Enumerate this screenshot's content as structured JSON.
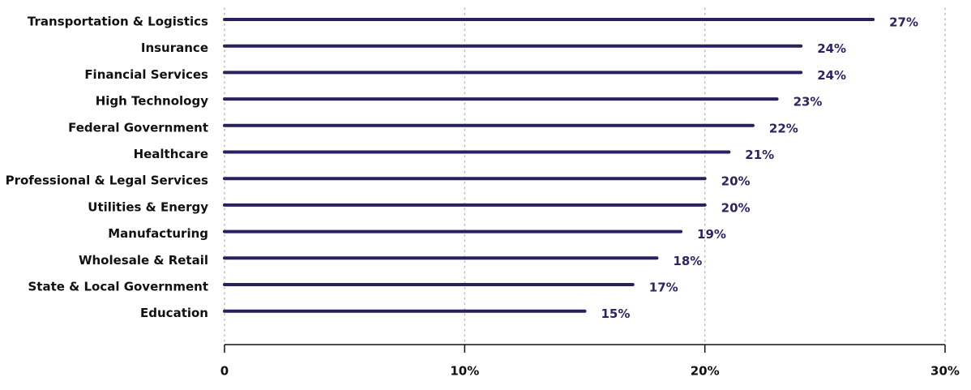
{
  "chart_data": {
    "type": "bar",
    "orientation": "horizontal",
    "categories": [
      "Transportation & Logistics",
      "Insurance",
      "Financial Services",
      "High Technology",
      "Federal Government",
      "Healthcare",
      "Professional & Legal Services",
      "Utilities & Energy",
      "Manufacturing",
      "Wholesale & Retail",
      "State & Local Government",
      "Education"
    ],
    "values": [
      27,
      24,
      24,
      23,
      22,
      21,
      20,
      20,
      19,
      18,
      17,
      15
    ],
    "value_labels": [
      "27%",
      "24%",
      "24%",
      "23%",
      "22%",
      "21%",
      "20%",
      "20%",
      "19%",
      "18%",
      "17%",
      "15%"
    ],
    "color": "#27215f",
    "xlim": [
      0,
      30
    ],
    "xticks": [
      0,
      {
        "value": 10,
        "label": "10%"
      },
      {
        "value": 20,
        "label": "20%"
      },
      {
        "value": 30,
        "label": "30%"
      }
    ],
    "grid": true
  }
}
